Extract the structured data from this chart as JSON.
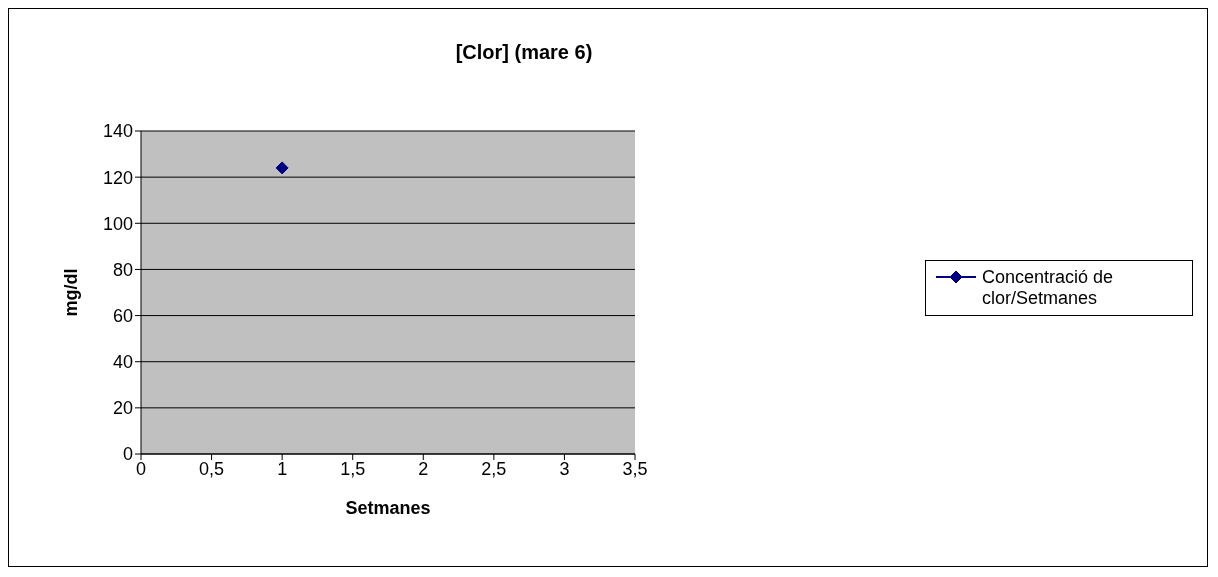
{
  "chart_data": {
    "type": "line",
    "title": "[Clor] (mare 6)",
    "xlabel": "Setmanes",
    "ylabel": "mg/dl",
    "x": [
      1
    ],
    "series": [
      {
        "name": "Concentració de clor/Setmanes",
        "color": "#000080",
        "values": [
          124
        ]
      }
    ],
    "xlim": [
      0,
      3.5
    ],
    "xticks": [
      0,
      {
        "value": 0.5,
        "label": "0,5"
      },
      1,
      {
        "value": 1.5,
        "label": "1,5"
      },
      2,
      {
        "value": 2.5,
        "label": "2,5"
      },
      3,
      {
        "value": 3.5,
        "label": "3,5"
      }
    ],
    "ylim": [
      0,
      140
    ],
    "yticks": [
      0,
      20,
      40,
      60,
      80,
      100,
      120,
      140
    ],
    "grid": "y",
    "legend": "right",
    "marker": "diamond",
    "line_style": "solid"
  }
}
